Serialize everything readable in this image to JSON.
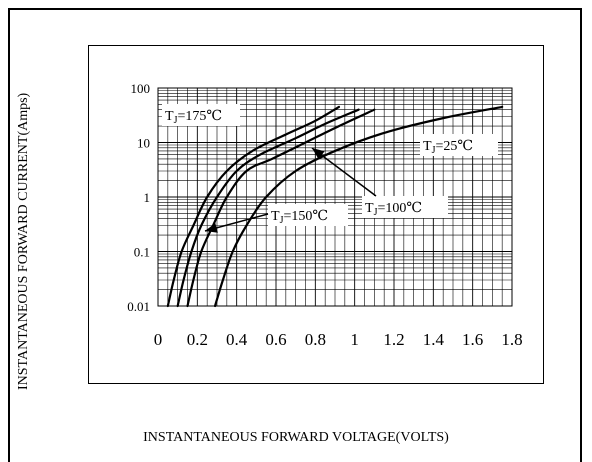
{
  "chart_data": {
    "type": "line",
    "title": "",
    "xlabel": "INSTANTANEOUS FORWARD VOLTAGE(VOLTS)",
    "ylabel": "INSTANTANEOUS FORWARD CURRENT(Amps)",
    "xlim": [
      0,
      1.8
    ],
    "ylim": [
      0.01,
      100
    ],
    "y_scale": "log",
    "grid": true,
    "x_ticks": [
      "0",
      "0.2",
      "0.4",
      "0.6",
      "0.8",
      "1",
      "1.2",
      "1.4",
      "1.6",
      "1.8"
    ],
    "y_ticks": [
      "100",
      "10",
      "1",
      "0.1",
      "0.01"
    ],
    "series": [
      {
        "name": "TJ=175°C",
        "x": [
          0.05,
          0.08,
          0.12,
          0.18,
          0.25,
          0.35,
          0.48,
          0.65,
          0.8,
          0.92
        ],
        "y": [
          0.01,
          0.03,
          0.1,
          0.3,
          1,
          3,
          7,
          14,
          25,
          45
        ]
      },
      {
        "name": "TJ=150°C",
        "x": [
          0.1,
          0.13,
          0.17,
          0.22,
          0.3,
          0.4,
          0.52,
          0.7,
          0.85,
          1.02
        ],
        "y": [
          0.01,
          0.03,
          0.1,
          0.3,
          1,
          3,
          6,
          12,
          22,
          40
        ]
      },
      {
        "name": "TJ=100°C",
        "x": [
          0.15,
          0.18,
          0.22,
          0.28,
          0.35,
          0.45,
          0.58,
          0.75,
          0.92,
          1.1
        ],
        "y": [
          0.01,
          0.03,
          0.1,
          0.3,
          1,
          3,
          5,
          10,
          20,
          40
        ]
      },
      {
        "name": "TJ=25°C",
        "x": [
          0.29,
          0.33,
          0.38,
          0.45,
          0.55,
          0.7,
          0.9,
          1.15,
          1.45,
          1.75
        ],
        "y": [
          0.01,
          0.03,
          0.1,
          0.3,
          1,
          3,
          7,
          15,
          28,
          45
        ]
      }
    ],
    "annotations": [
      {
        "text_prefix": "T",
        "text_sub": "J",
        "text_suffix": "=175℃",
        "series": "TJ=175°C"
      },
      {
        "text_prefix": "T",
        "text_sub": "J",
        "text_suffix": "=150℃",
        "series": "TJ=150°C"
      },
      {
        "text_prefix": "T",
        "text_sub": "J",
        "text_suffix": "=100℃",
        "series": "TJ=100°C"
      },
      {
        "text_prefix": "T",
        "text_sub": "J",
        "text_suffix": "=25℃",
        "series": "TJ=25°C"
      }
    ]
  }
}
